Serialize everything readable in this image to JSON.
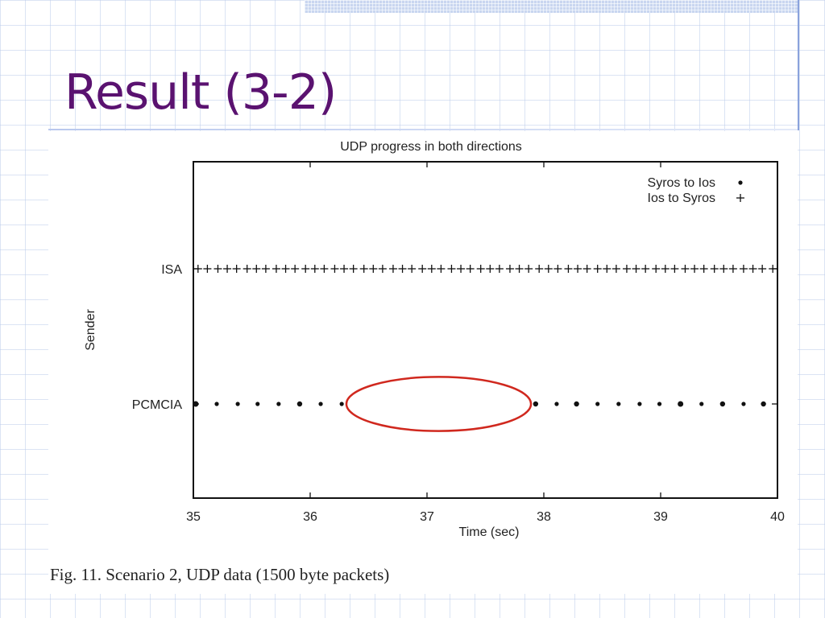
{
  "slide": {
    "title": "Result (3-2)",
    "caption": "Fig. 11.    Scenario 2, UDP data (1500 byte packets)",
    "colors": {
      "title": "#5a1270",
      "highlight": "#d0281e"
    }
  },
  "chart_data": {
    "type": "scatter",
    "title": "UDP progress in both directions",
    "xlabel": "Time (sec)",
    "ylabel": "Sender",
    "xlim": [
      35,
      40
    ],
    "x_ticks": [
      "35",
      "36",
      "37",
      "38",
      "39",
      "40"
    ],
    "categories": [
      "PCMCIA",
      "ISA"
    ],
    "legend_position": "top-right",
    "grid": false,
    "series": [
      {
        "name": "Syros to Ios",
        "legend_label": "Syros to Ios",
        "marker": "dot",
        "y": "PCMCIA",
        "x": [
          35.02,
          35.2,
          35.38,
          35.55,
          35.73,
          35.91,
          36.09,
          36.27,
          37.93,
          38.11,
          38.28,
          38.46,
          38.64,
          38.82,
          38.99,
          39.17,
          39.35,
          39.53,
          39.71,
          39.88
        ],
        "size": [
          3.5,
          2.6,
          2.6,
          2.6,
          2.6,
          3.2,
          2.6,
          2.6,
          3.2,
          2.6,
          3.2,
          2.6,
          2.6,
          2.6,
          2.6,
          3.5,
          2.6,
          3.2,
          2.6,
          3.2
        ]
      },
      {
        "name": "Ios to Syros",
        "legend_label": "Ios to Syros",
        "marker": "plus",
        "y": "ISA",
        "x": [
          35.04,
          35.12,
          35.21,
          35.29,
          35.37,
          35.46,
          35.54,
          35.62,
          35.71,
          35.79,
          35.87,
          35.96,
          36.04,
          36.12,
          36.21,
          36.29,
          36.37,
          36.46,
          36.54,
          36.62,
          36.71,
          36.79,
          36.87,
          36.96,
          37.04,
          37.12,
          37.21,
          37.29,
          37.37,
          37.46,
          37.54,
          37.62,
          37.71,
          37.79,
          37.87,
          37.96,
          38.04,
          38.12,
          38.21,
          38.29,
          38.37,
          38.46,
          38.54,
          38.62,
          38.71,
          38.79,
          38.87,
          38.96,
          39.04,
          39.12,
          39.21,
          39.29,
          39.37,
          39.46,
          39.54,
          39.62,
          39.71,
          39.79,
          39.87,
          39.96
        ]
      }
    ],
    "annotations": [
      {
        "shape": "ellipse",
        "x_center": 37.1,
        "y": "PCMCIA",
        "x_halfwidth": 0.79,
        "y_halfheight": 0.2,
        "color": "#d0281e"
      }
    ]
  }
}
